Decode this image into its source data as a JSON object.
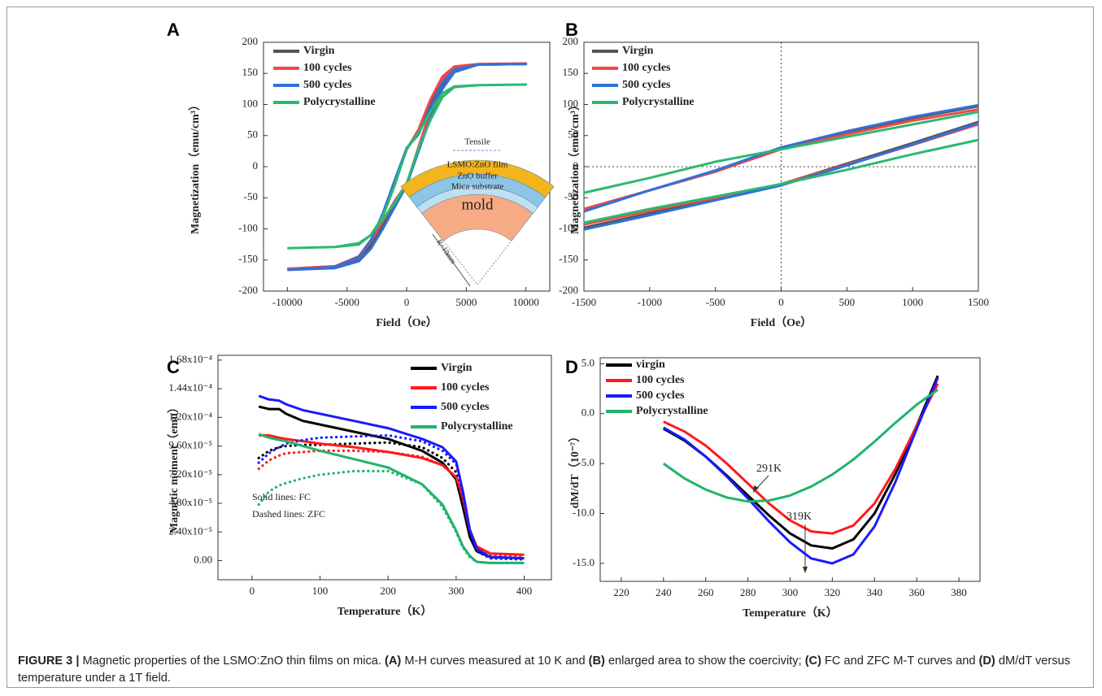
{
  "chart_data": [
    {
      "type": "line",
      "panel": "A",
      "xlabel": "Field（Oe）",
      "ylabel": "Magnetization（emu/cm³）",
      "xlim": [
        -12000,
        12000
      ],
      "ylim": [
        -200,
        200
      ],
      "xticks": [
        -10000,
        -5000,
        0,
        5000,
        10000
      ],
      "yticks": [
        -200,
        -150,
        -100,
        -50,
        0,
        50,
        100,
        150,
        200
      ],
      "legend": "upper left",
      "zero_lines": false,
      "series": [
        {
          "name": "Virgin",
          "color": "#555555",
          "x": [
            -10000,
            -6000,
            -4000,
            -3000,
            -2000,
            -1000,
            0,
            1000,
            2000,
            3000,
            4000,
            6000,
            10000,
            6000,
            4000,
            3000,
            2000,
            1000,
            0,
            -1000,
            -2000,
            -3000,
            -4000,
            -6000,
            -10000
          ],
          "values": [
            -165,
            -162,
            -150,
            -128,
            -95,
            -60,
            -28,
            30,
            85,
            130,
            155,
            164,
            165,
            164,
            158,
            140,
            102,
            58,
            28,
            -25,
            -80,
            -122,
            -148,
            -162,
            -165
          ]
        },
        {
          "name": "100 cycles",
          "color": "#f04848",
          "x": [
            -10000,
            -6000,
            -4000,
            -3000,
            -2000,
            -1000,
            0,
            1000,
            2000,
            3000,
            4000,
            6000,
            10000,
            6000,
            4000,
            3000,
            2000,
            1000,
            0,
            -1000,
            -2000,
            -3000,
            -4000,
            -6000,
            -10000
          ],
          "values": [
            -164,
            -160,
            -146,
            -120,
            -88,
            -55,
            -28,
            32,
            90,
            138,
            160,
            165,
            166,
            165,
            161,
            145,
            108,
            60,
            27,
            -25,
            -78,
            -118,
            -144,
            -160,
            -164
          ]
        },
        {
          "name": "500 cycles",
          "color": "#2f72d8",
          "x": [
            -10000,
            -6000,
            -4000,
            -3000,
            -2000,
            -1000,
            0,
            1000,
            2000,
            3000,
            4000,
            6000,
            10000,
            6000,
            4000,
            3000,
            2000,
            1000,
            0,
            -1000,
            -2000,
            -3000,
            -4000,
            -6000,
            -10000
          ],
          "values": [
            -166,
            -163,
            -152,
            -132,
            -100,
            -65,
            -30,
            25,
            78,
            125,
            152,
            164,
            165,
            164,
            156,
            135,
            95,
            52,
            30,
            -22,
            -75,
            -118,
            -145,
            -161,
            -166
          ]
        },
        {
          "name": "Polycrystalline",
          "color": "#2db872",
          "x": [
            -10000,
            -6000,
            -4000,
            -3000,
            -2000,
            -1000,
            0,
            1000,
            2000,
            3000,
            4000,
            6000,
            10000,
            6000,
            4000,
            3000,
            2000,
            1000,
            0,
            -1000,
            -2000,
            -3000,
            -4000,
            -6000,
            -10000
          ],
          "values": [
            -131,
            -129,
            -123,
            -110,
            -85,
            -58,
            -28,
            30,
            75,
            112,
            128,
            131,
            132,
            131,
            129,
            118,
            88,
            55,
            28,
            -30,
            -80,
            -110,
            -125,
            -129,
            -131
          ]
        }
      ],
      "inset": {
        "tensile": "Tensile",
        "film": "LSMO:ZnO film",
        "buffer": "ZnO buffer",
        "substrate": "Mica substrate",
        "mold": "mold",
        "radius": "R=10mm"
      }
    },
    {
      "type": "line",
      "panel": "B",
      "xlabel": "Field（Oe）",
      "ylabel": "Magnetization（emu/cm³）",
      "xlim": [
        -1500,
        1500
      ],
      "ylim": [
        -200,
        200
      ],
      "xticks": [
        -1500,
        -1000,
        -500,
        0,
        500,
        1000,
        1500
      ],
      "yticks": [
        -200,
        -150,
        -100,
        -50,
        0,
        50,
        100,
        150,
        200
      ],
      "legend": "upper left",
      "zero_lines": true,
      "series": [
        {
          "name": "Virgin",
          "color": "#555555",
          "x": [
            -1500,
            -1000,
            -500,
            0,
            500,
            1000,
            1500,
            null,
            1500,
            1000,
            500,
            0,
            -500,
            -1000,
            -1500
          ],
          "values": [
            -98,
            -75,
            -52,
            -28,
            5,
            38,
            72,
            null,
            97,
            78,
            55,
            30,
            -8,
            -38,
            -70
          ]
        },
        {
          "name": "100 cycles",
          "color": "#f04848",
          "x": [
            -1500,
            -1000,
            -500,
            0,
            500,
            1000,
            1500,
            null,
            1500,
            1000,
            500,
            0,
            -500,
            -1000,
            -1500
          ],
          "values": [
            -93,
            -71,
            -50,
            -28,
            3,
            35,
            68,
            null,
            92,
            74,
            52,
            28,
            -8,
            -38,
            -68
          ]
        },
        {
          "name": "500 cycles",
          "color": "#2f72d8",
          "x": [
            -1500,
            -1000,
            -500,
            0,
            500,
            1000,
            1500,
            null,
            1500,
            1000,
            500,
            0,
            -500,
            -1000,
            -1500
          ],
          "values": [
            -101,
            -78,
            -54,
            -30,
            2,
            36,
            70,
            null,
            99,
            80,
            57,
            31,
            -6,
            -38,
            -72
          ]
        },
        {
          "name": "Polycrystalline",
          "color": "#2db872",
          "x": [
            -1500,
            -1000,
            -500,
            0,
            500,
            1000,
            1500,
            null,
            1500,
            1000,
            500,
            0,
            -500,
            -1000,
            -1500
          ],
          "values": [
            -90,
            -68,
            -48,
            -28,
            -5,
            20,
            43,
            null,
            88,
            68,
            48,
            28,
            8,
            -18,
            -42
          ]
        }
      ]
    },
    {
      "type": "line",
      "panel": "C",
      "xlabel": "Temperature（K）",
      "ylabel": "Magnetic moment（emu）",
      "xlim": [
        -50,
        440
      ],
      "ylim": [
        -1.6e-05,
        0.000172
      ],
      "xticks": [
        0,
        100,
        200,
        300,
        400
      ],
      "yticks": [
        {
          "value": 0,
          "label": "0.00"
        },
        {
          "value": 2.4e-05,
          "label": "2.40x10⁻⁵"
        },
        {
          "value": 4.8e-05,
          "label": "4.80x10⁻⁵"
        },
        {
          "value": 7.2e-05,
          "label": "7.20x10⁻⁵"
        },
        {
          "value": 9.6e-05,
          "label": "9.60x10⁻⁵"
        },
        {
          "value": 0.00012,
          "label": "1.20x10⁻⁴"
        },
        {
          "value": 0.000144,
          "label": "1.44x10⁻⁴"
        },
        {
          "value": 0.000168,
          "label": "1.68x10⁻⁴"
        }
      ],
      "legend": "upper right",
      "zero_lines": false,
      "x": [
        10,
        25,
        40,
        50,
        75,
        100,
        150,
        200,
        250,
        280,
        300,
        310,
        320,
        330,
        350,
        400
      ],
      "annotations": [
        "Solid lines: FC",
        "Dashed lines: ZFC"
      ],
      "series": [
        {
          "name": "Virgin",
          "color": "#000000",
          "values": [
            0.000129,
            0.000127,
            0.000127,
            0.000123,
            0.000117,
            0.000114,
            0.000108,
            0.000102,
            9.2e-05,
            8.2e-05,
            6.8e-05,
            4.5e-05,
            2e-05,
            8e-06,
            3e-06,
            2e-06
          ],
          "zfc_values": [
            8.6e-05,
            9.2e-05,
            9.5e-05,
            9.6e-05,
            9.7e-05,
            9.7e-05,
            9.8e-05,
            9.9e-05,
            9.5e-05,
            8.6e-05,
            7.4e-05,
            5e-05,
            2.2e-05,
            8e-06,
            2e-06,
            1e-06
          ]
        },
        {
          "name": "100 cycles",
          "color": "#ff1a1a",
          "values": [
            0.000105,
            0.000105,
            0.000103,
            0.000102,
            0.0001,
            9.8e-05,
            9.5e-05,
            9.1e-05,
            8.6e-05,
            8e-05,
            7e-05,
            5.3e-05,
            2.6e-05,
            1.2e-05,
            6e-06,
            5e-06
          ],
          "zfc_values": [
            7.7e-05,
            8.4e-05,
            8.8e-05,
            9e-05,
            9.1e-05,
            9.2e-05,
            9.2e-05,
            9.1e-05,
            8.7e-05,
            8e-05,
            7e-05,
            5.2e-05,
            2.5e-05,
            1.1e-05,
            5e-06,
            4e-06
          ]
        },
        {
          "name": "500 cycles",
          "color": "#1a1aff",
          "values": [
            0.000138,
            0.000135,
            0.000134,
            0.000131,
            0.000126,
            0.000123,
            0.000117,
            0.000111,
            0.000102,
            9.5e-05,
            8.3e-05,
            5.8e-05,
            2.6e-05,
            1e-05,
            3e-06,
            2e-06
          ],
          "zfc_values": [
            8.2e-05,
            9e-05,
            9.5e-05,
            9.8e-05,
            0.000101,
            0.000103,
            0.000104,
            0.000105,
            0.0001,
            9.2e-05,
            8.1e-05,
            5.6e-05,
            2.5e-05,
            9e-06,
            2e-06,
            1e-06
          ]
        },
        {
          "name": "Polycrystalline",
          "color": "#20b46a",
          "values": [
            0.000106,
            0.000103,
            0.000101,
            0.0001,
            9.6e-05,
            9.2e-05,
            8.5e-05,
            7.8e-05,
            6.4e-05,
            4.7e-05,
            2.5e-05,
            1.2e-05,
            4e-06,
            -1e-06,
            -2e-06,
            -2e-06
          ],
          "zfc_values": [
            4.7e-05,
            5.8e-05,
            6.3e-05,
            6.5e-05,
            6.9e-05,
            7.2e-05,
            7.5e-05,
            7.5e-05,
            6.4e-05,
            4.5e-05,
            2.4e-05,
            1.1e-05,
            3e-06,
            -1e-06,
            -2e-06,
            -2e-06
          ]
        }
      ]
    },
    {
      "type": "line",
      "panel": "D",
      "xlabel": "Temperature（K）",
      "ylabel": "dM/dT（10⁻⁷）",
      "xlim": [
        210,
        390
      ],
      "ylim": [
        -16.8,
        5.6
      ],
      "xticks": [
        220,
        240,
        260,
        280,
        300,
        320,
        340,
        360,
        380
      ],
      "yticks": [
        {
          "value": 5,
          "label": "5.0"
        },
        {
          "value": 0,
          "label": "0.0"
        },
        {
          "value": -5,
          "label": "-5.0"
        },
        {
          "value": -10,
          "label": "-10.0"
        },
        {
          "value": -15,
          "label": "-15.0"
        }
      ],
      "legend": "upper left",
      "zero_lines": false,
      "x": [
        240,
        250,
        260,
        270,
        280,
        290,
        300,
        310,
        320,
        330,
        340,
        350,
        360,
        370
      ],
      "annotations": [
        "291K",
        "319K"
      ],
      "series": [
        {
          "name": "virgin",
          "color": "#000000",
          "values": [
            -1.5,
            -2.7,
            -4.3,
            -6.2,
            -8.2,
            -10.2,
            -12,
            -13.2,
            -13.5,
            -12.6,
            -10,
            -6,
            -1.2,
            3.8
          ]
        },
        {
          "name": "100 cycles",
          "color": "#ff1a1a",
          "values": [
            -0.8,
            -1.8,
            -3.2,
            -5,
            -7,
            -9,
            -10.7,
            -11.8,
            -12,
            -11.2,
            -9,
            -5.5,
            -1.2,
            3.0
          ]
        },
        {
          "name": "500 cycles",
          "color": "#1a1aff",
          "values": [
            -1.4,
            -2.6,
            -4.3,
            -6.3,
            -8.5,
            -10.8,
            -12.9,
            -14.5,
            -15,
            -14.1,
            -11.3,
            -6.8,
            -1.5,
            3.6
          ]
        },
        {
          "name": "Polycrystalline",
          "color": "#20b46a",
          "values": [
            -5,
            -6.5,
            -7.6,
            -8.4,
            -8.8,
            -8.7,
            -8.2,
            -7.3,
            -6.1,
            -4.6,
            -2.8,
            -0.9,
            0.9,
            2.4
          ]
        }
      ]
    }
  ],
  "caption": [
    {
      "text": "FIGURE 3 |",
      "bold": true
    },
    {
      "text": " Magnetic properties of the LSMO:ZnO thin films on mica. ",
      "bold": false
    },
    {
      "text": "(A)",
      "bold": true
    },
    {
      "text": " M-H curves measured at 10 K and ",
      "bold": false
    },
    {
      "text": "(B)",
      "bold": true
    },
    {
      "text": " enlarged area to show the coercivity; ",
      "bold": false
    },
    {
      "text": "(C)",
      "bold": true
    },
    {
      "text": " FC and ZFC M-T curves and ",
      "bold": false
    },
    {
      "text": "(D)",
      "bold": true
    },
    {
      "text": " dM/dT versus temperature under a 1T field.",
      "bold": false
    }
  ]
}
